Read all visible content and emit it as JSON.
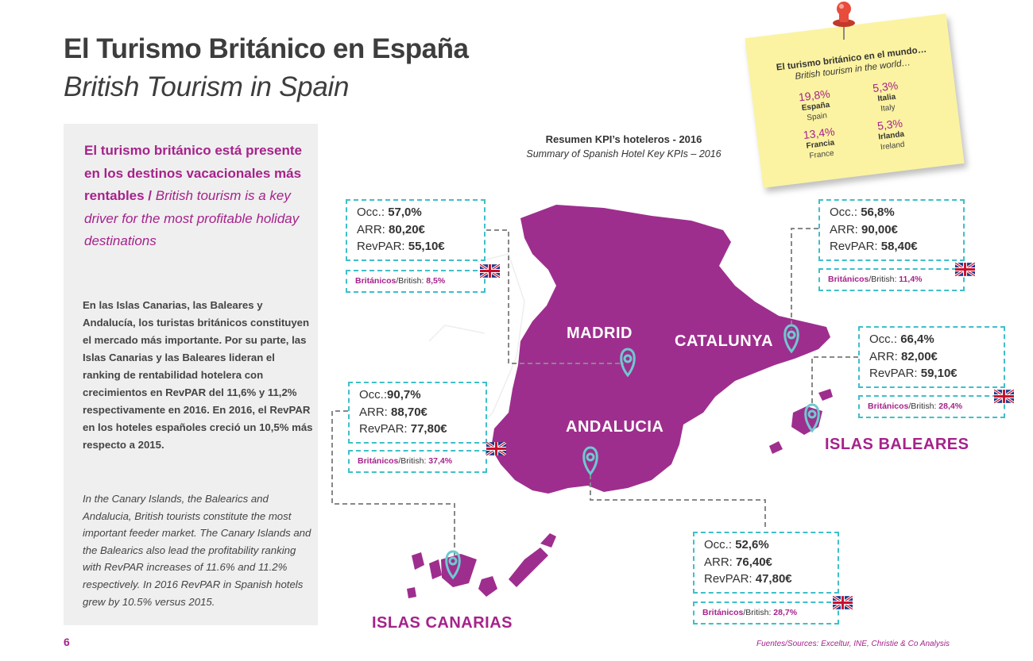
{
  "header": {
    "title_es": "El Turismo Británico en España",
    "title_en": "British Tourism in Spain"
  },
  "sidebar": {
    "headline_es": "El turismo británico está presente en los destinos vacacionales más rentables /",
    "headline_en": "British tourism is a key driver for the most profitable holiday destinations",
    "body_es": "En las Islas Canarias, las Baleares y Andalucía, los turistas británicos constituyen el mercado más importante. Por su parte, las Islas Canarias y las Baleares lideran el ranking de rentabilidad hotelera con crecimientos en RevPAR del 11,6% y 11,2% respectivamente en 2016. En 2016, el RevPAR en los hoteles españoles creció un 10,5% más respecto a 2015.",
    "body_en": "In the Canary Islands, the Balearics and Andalucia, British tourists constitute the most important feeder market. The Canary Islands and the Balearics also lead the profitability ranking with RevPAR increases of 11.6% and 11.2% respectively. In 2016 RevPAR in Spanish hotels grew by 10.5% versus 2015."
  },
  "summary": {
    "title_es": "Resumen KPI’s hoteleros - 2016",
    "title_en": "Summary of Spanish Hotel Key KPIs – 2016"
  },
  "labels": {
    "occ": "Occ.:",
    "arr": "ARR:",
    "revpar": "RevPAR:",
    "brit_es": "Británicos",
    "brit_en": "/British: "
  },
  "regions": {
    "madrid": {
      "name": "MADRID",
      "occ": "57,0%",
      "arr": "80,20€",
      "revpar": "55,10€",
      "british": "8,5%"
    },
    "catalunya": {
      "name": "CATALUNYA",
      "occ": "56,8%",
      "arr": "90,00€",
      "revpar": "58,40€",
      "british": "11,4%"
    },
    "baleares": {
      "name": "ISLAS BALEARES",
      "occ": "66,4%",
      "arr": "82,00€",
      "revpar": "59,10€",
      "british": "28,4%"
    },
    "canarias": {
      "name": "ISLAS CANARIAS",
      "occ": "90,7%",
      "arr": "88,70€",
      "revpar": "77,80€",
      "british": "37,4%"
    },
    "andalucia": {
      "name": "ANDALUCIA",
      "occ": "52,6%",
      "arr": "76,40€",
      "revpar": "47,80€",
      "british": "28,7%"
    }
  },
  "world_note": {
    "title_es": "El turismo británico en el mundo…",
    "title_en": "British tourism in the world…",
    "countries": [
      {
        "pct": "19,8%",
        "name_es": "España",
        "name_en": "Spain"
      },
      {
        "pct": "5,3%",
        "name_es": "Italia",
        "name_en": "Italy"
      },
      {
        "pct": "13,4%",
        "name_es": "Francia",
        "name_en": "France"
      },
      {
        "pct": "5,3%",
        "name_es": "Irlanda",
        "name_en": "Ireland"
      }
    ]
  },
  "footer": {
    "page_number": "6",
    "sources": "Fuentes/Sources: Exceltur, INE, Christie & Co Analysis"
  },
  "colors": {
    "magenta": "#a6228b",
    "map": "#9e2e8e",
    "teal": "#3fbfc9"
  }
}
